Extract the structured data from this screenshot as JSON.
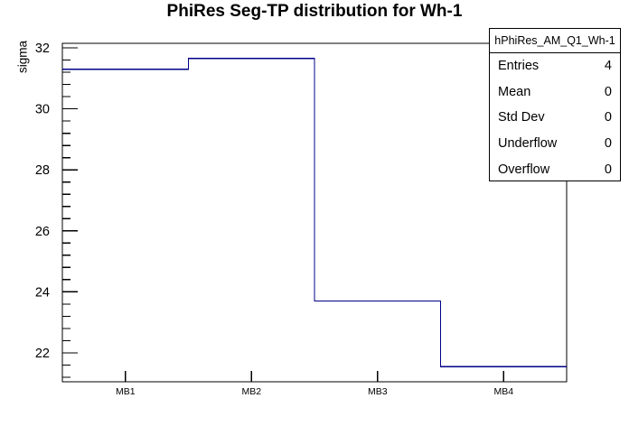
{
  "title": "PhiRes Seg-TP distribution for Wh-1",
  "stats_box": {
    "header": "hPhiRes_AM_Q1_Wh-1",
    "rows": [
      {
        "label": "Entries",
        "value": "4"
      },
      {
        "label": "Mean",
        "value": "0"
      },
      {
        "label": "Std Dev",
        "value": "0"
      },
      {
        "label": "Underflow",
        "value": "0"
      },
      {
        "label": "Overflow",
        "value": "0"
      }
    ]
  },
  "colors": {
    "histogram_line": "#000087",
    "axis": "#000000",
    "text": "#000000",
    "background": "#ffffff"
  },
  "chart_data": {
    "type": "line",
    "style": "step-histogram",
    "title": "PhiRes Seg-TP distribution for Wh-1",
    "categories": [
      "MB1",
      "MB2",
      "MB3",
      "MB4"
    ],
    "values": [
      31.3,
      31.65,
      23.7,
      21.55
    ],
    "xlabel": "",
    "ylabel": "sigma",
    "xlim": [
      0,
      4
    ],
    "ylim": [
      21.05,
      32.15
    ],
    "yticks_major": [
      22,
      24,
      26,
      28,
      30,
      32
    ],
    "ytick_minor_step": 0.4,
    "ytick_major_every": 2,
    "grid": false,
    "legend": false
  }
}
